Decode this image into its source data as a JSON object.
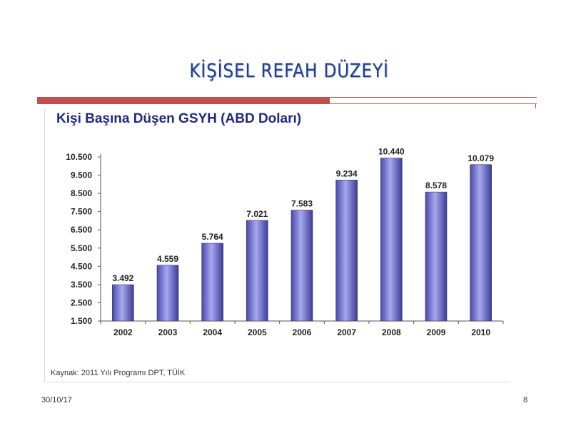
{
  "slide": {
    "title": "KİŞİSEL REFAH DÜZEYİ",
    "date": "30/10/17",
    "page_number": "8"
  },
  "colors": {
    "title": "#1f3f8f",
    "accent_bar": "#c0504d",
    "bar_fill": "#7f7fd8",
    "chart_title": "#1f2a80"
  },
  "chart_data": {
    "type": "bar",
    "title": "Kişi Başına Düşen GSYH (ABD Doları)",
    "source": "Kaynak: 2011 Yılı Programı DPT, TÜİK",
    "categories": [
      "2002",
      "2003",
      "2004",
      "2005",
      "2006",
      "2007",
      "2008",
      "2009",
      "2010"
    ],
    "values": [
      3492,
      4559,
      5764,
      7021,
      7583,
      9234,
      10440,
      8578,
      10079
    ],
    "value_labels": [
      "3.492",
      "4.559",
      "5.764",
      "7.021",
      "7.583",
      "9.234",
      "10.440",
      "8.578",
      "10.079"
    ],
    "yticks": [
      1500,
      2500,
      3500,
      4500,
      5500,
      6500,
      7500,
      8500,
      9500,
      10500
    ],
    "ytick_labels": [
      "1.500",
      "2.500",
      "3.500",
      "4.500",
      "5.500",
      "6.500",
      "7.500",
      "8.500",
      "9.500",
      "10.500"
    ],
    "ylim": [
      1500,
      10500
    ],
    "grid": false,
    "legend": "none"
  }
}
